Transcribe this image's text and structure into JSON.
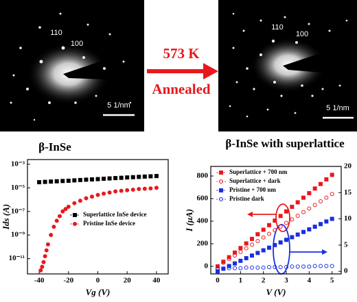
{
  "panels": {
    "left_image": {
      "labels": [
        "110",
        "100"
      ],
      "scale": "5 1/nm",
      "caption": "β-InSe"
    },
    "right_image": {
      "labels": [
        "110",
        "100"
      ],
      "scale": "5 1/nm",
      "caption": "β-InSe with superlattice"
    },
    "arrow": {
      "top": "573 K",
      "bottom": "Annealed"
    }
  },
  "chart_data": [
    {
      "type": "scatter",
      "log": true,
      "x_label": "Vg (V)",
      "y_label": "Ids (A)",
      "xlim": [
        -48,
        48
      ],
      "xticks": [
        -40,
        -20,
        0,
        20,
        40
      ],
      "ylim": [
        5e-13,
        0.0025
      ],
      "yticks": [
        {
          "value": 1e-11,
          "label": "10⁻¹¹"
        },
        {
          "value": 1e-09,
          "label": "10⁻⁹"
        },
        {
          "value": 1e-07,
          "label": "10⁻⁷"
        },
        {
          "value": 1e-05,
          "label": "10⁻⁵"
        },
        {
          "value": 0.001,
          "label": "10⁻³"
        }
      ],
      "legend": "lower right",
      "series": [
        {
          "name": "Superlattice InSe device",
          "color": "#000000",
          "marker": "square",
          "filled": true,
          "x": [
            -40,
            -36,
            -32,
            -28,
            -24,
            -20,
            -16,
            -12,
            -8,
            -4,
            0,
            4,
            8,
            12,
            16,
            20,
            24,
            28,
            32,
            36,
            40
          ],
          "values": [
            3e-05,
            3.2e-05,
            3.4e-05,
            3.6e-05,
            3.8e-05,
            4e-05,
            4.3e-05,
            4.6e-05,
            4.9e-05,
            5.2e-05,
            5.5e-05,
            5.9e-05,
            6.3e-05,
            6.7e-05,
            7.1e-05,
            7.6e-05,
            8e-05,
            8.5e-05,
            9e-05,
            9.5e-05,
            0.0001
          ]
        },
        {
          "name": "Pristine InSe device",
          "color": "#e8191c",
          "marker": "circle",
          "filled": true,
          "x": [
            -39,
            -38,
            -37,
            -36,
            -35,
            -34,
            -32,
            -30,
            -28,
            -26,
            -24,
            -22,
            -20,
            -16,
            -12,
            -8,
            -4,
            0,
            4,
            8,
            12,
            16,
            20,
            24,
            28,
            32,
            36,
            40
          ],
          "values": [
            1e-12,
            2e-12,
            5e-12,
            1.6e-11,
            5e-11,
            1.6e-10,
            1e-09,
            5e-09,
            1.6e-08,
            4e-08,
            1e-07,
            1.6e-07,
            2.5e-07,
            5e-07,
            8e-07,
            1.3e-06,
            1.8e-06,
            2.5e-06,
            3.2e-06,
            4e-06,
            5e-06,
            5.6e-06,
            6.3e-06,
            7e-06,
            8e-06,
            8.3e-06,
            8.9e-06,
            1e-05
          ]
        }
      ]
    },
    {
      "type": "scatter",
      "x_label": "V (V)",
      "y_label": "I (μA)",
      "xlim": [
        -0.3,
        5.4
      ],
      "xticks": [
        0,
        1,
        2,
        3,
        4,
        5
      ],
      "ylim": [
        -67,
        885
      ],
      "yticks": [
        0,
        200,
        400,
        600,
        800
      ],
      "y2lim": [
        -0.5,
        20
      ],
      "y2ticks": [
        0,
        5,
        10,
        15,
        20
      ],
      "legend": "upper left",
      "series": [
        {
          "name": "Superlattice + 700 nm",
          "color": "#e8191c",
          "marker": "square",
          "filled": true,
          "x": [
            0,
            0.25,
            0.5,
            0.75,
            1,
            1.25,
            1.5,
            1.75,
            2,
            2.25,
            2.5,
            2.75,
            3,
            3.25,
            3.5,
            3.75,
            4,
            4.25,
            4.5,
            4.75,
            5
          ],
          "values": [
            0,
            41,
            81,
            122,
            162,
            203,
            243,
            284,
            324,
            365,
            405,
            446,
            486,
            527,
            567,
            608,
            648,
            689,
            729,
            770,
            810
          ]
        },
        {
          "name": "Superlattice + dark",
          "color": "#e8191c",
          "marker": "circle",
          "filled": false,
          "x": [
            0,
            0.25,
            0.5,
            0.75,
            1,
            1.25,
            1.5,
            1.75,
            2,
            2.25,
            2.5,
            2.75,
            3,
            3.25,
            3.5,
            3.75,
            4,
            4.25,
            4.5,
            4.75,
            5
          ],
          "values": [
            0,
            32,
            64,
            96,
            128,
            160,
            192,
            224,
            256,
            288,
            320,
            352,
            384,
            416,
            448,
            480,
            512,
            544,
            576,
            608,
            640
          ]
        },
        {
          "name": "Pristine + 700 nm",
          "color": "#1a2ee0",
          "marker": "square",
          "filled": true,
          "axis": "y2",
          "x": [
            0,
            0.25,
            0.5,
            0.75,
            1,
            1.25,
            1.5,
            1.75,
            2,
            2.25,
            2.5,
            2.75,
            3,
            3.25,
            3.5,
            3.75,
            4,
            4.25,
            4.5,
            4.75,
            5
          ],
          "values": [
            0,
            0.5,
            1,
            1.5,
            2,
            2.5,
            3,
            3.5,
            4,
            4.5,
            5,
            5.5,
            6,
            6.5,
            7,
            7.5,
            8,
            8.5,
            9,
            9.5,
            10
          ]
        },
        {
          "name": "Pristine dark",
          "color": "#1a2ee0",
          "marker": "circle",
          "filled": false,
          "axis": "y2",
          "x": [
            0,
            0.25,
            0.5,
            0.75,
            1,
            1.25,
            1.5,
            1.75,
            2,
            2.25,
            2.5,
            2.75,
            3,
            3.25,
            3.5,
            3.75,
            4,
            4.25,
            4.5,
            4.75,
            5
          ],
          "values": [
            0.5,
            0.5,
            0.6,
            0.6,
            0.6,
            0.7,
            0.7,
            0.7,
            0.7,
            0.8,
            0.8,
            0.8,
            0.8,
            0.9,
            0.9,
            0.9,
            0.9,
            1,
            1,
            1,
            1
          ]
        }
      ]
    }
  ]
}
